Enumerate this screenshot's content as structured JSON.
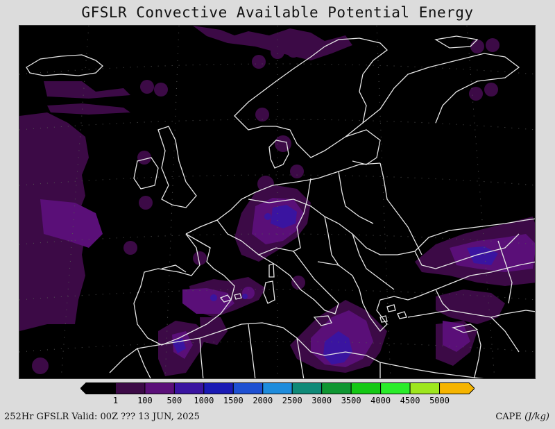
{
  "title": "GFSLR Convective Available Potential Energy",
  "footer": {
    "left": "252Hr GFSLR Valid: 00Z ??? 13 JUN, 2025",
    "right_main": "CAPE",
    "right_unit": "(J/kg)"
  },
  "colorbar": {
    "colors": [
      "#000000",
      "#3c0a46",
      "#5a0f78",
      "#3a14a0",
      "#1a1ab4",
      "#1e50d2",
      "#1e8cdc",
      "#0f8a78",
      "#0f9632",
      "#14c814",
      "#2aec2a",
      "#9ee61e",
      "#f5b400"
    ],
    "labels": [
      "1",
      "100",
      "500",
      "1000",
      "1500",
      "2000",
      "2500",
      "3000",
      "3500",
      "4000",
      "4500",
      "5000"
    ]
  },
  "map": {
    "fill_colors": {
      "level1": "#3c0a46",
      "level2": "#5a0f78",
      "level3": "#3a14a0"
    },
    "coastline_color": "#e6e6e6"
  }
}
